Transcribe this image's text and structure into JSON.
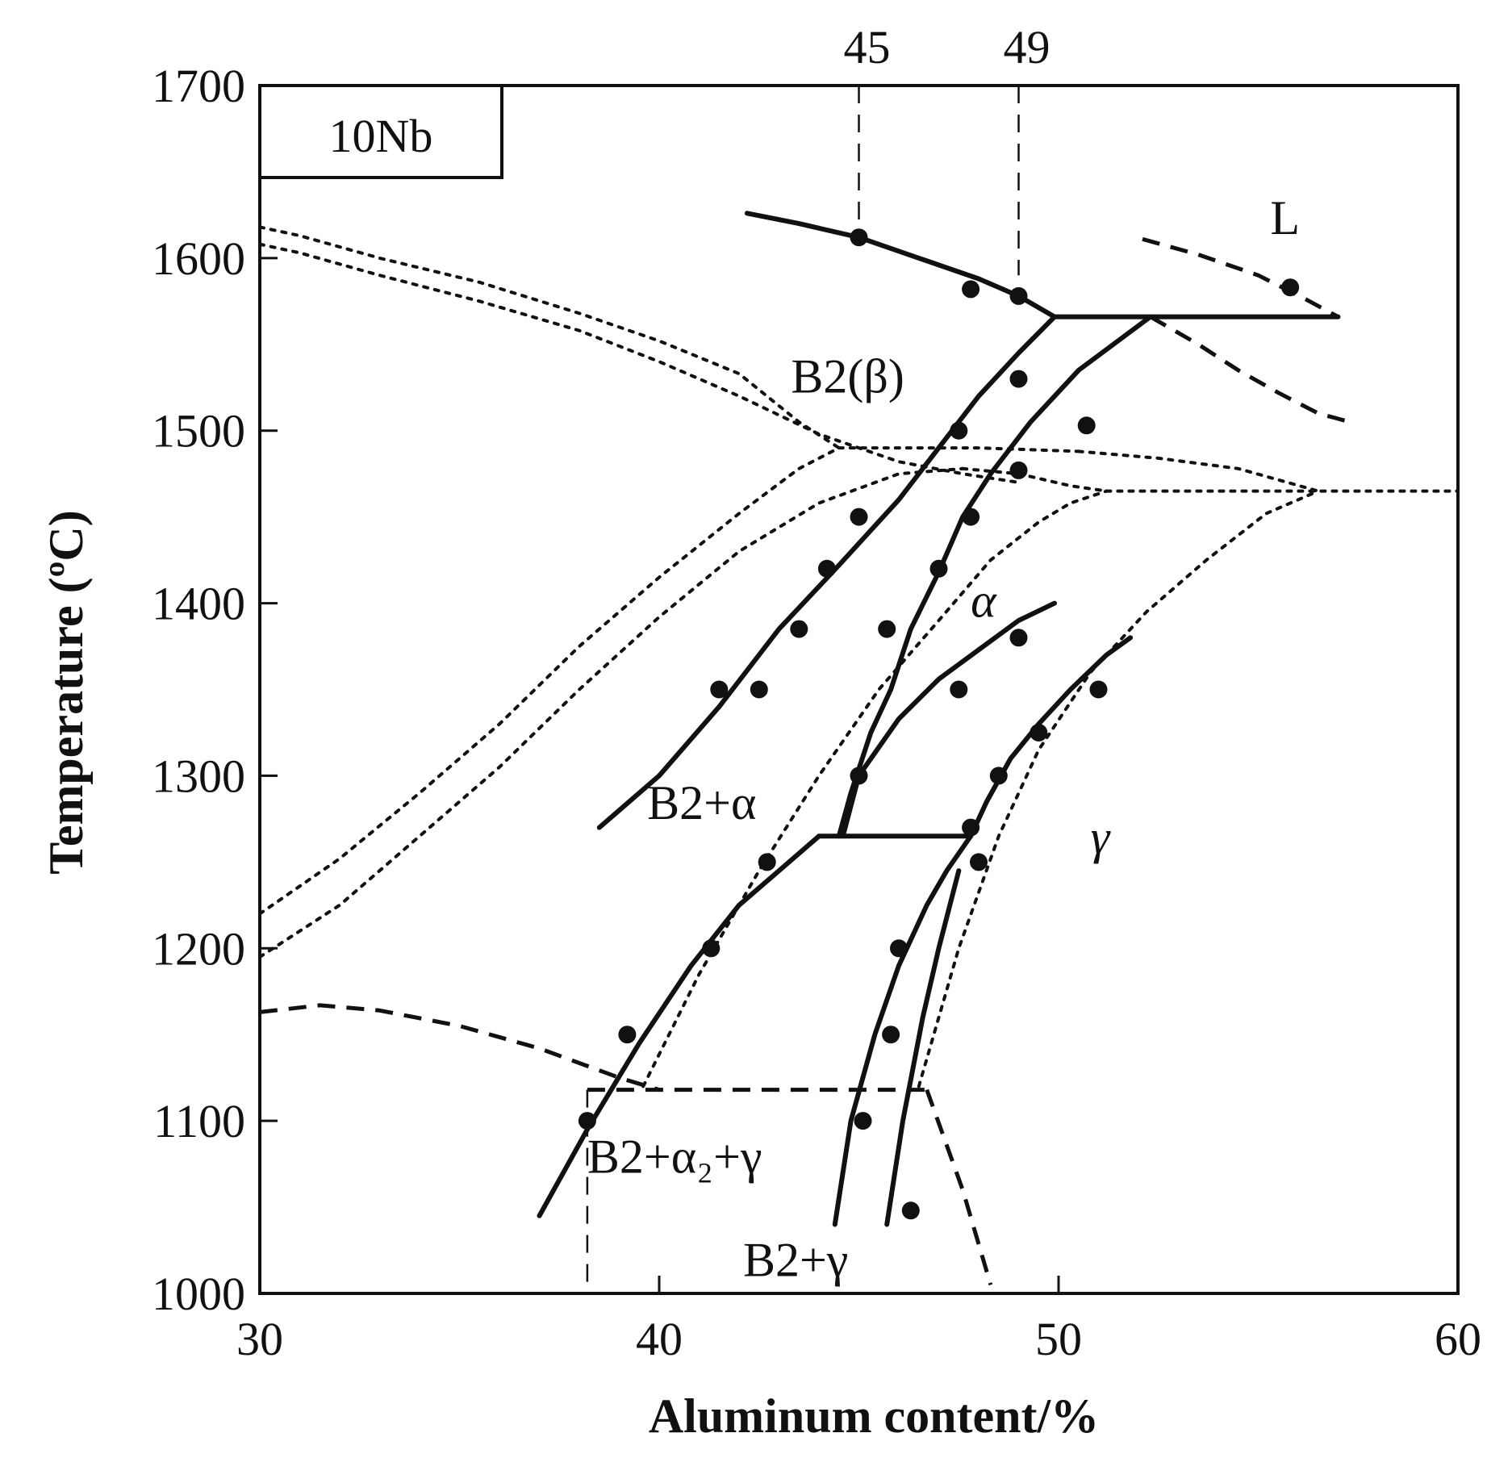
{
  "chart_data": {
    "type": "line",
    "title": "",
    "xlabel": "Aluminum content/%",
    "ylabel": "Temperature (ºC)",
    "xlim": [
      30,
      60
    ],
    "ylim": [
      1000,
      1700
    ],
    "x_ticks": [
      "30",
      "40",
      "50",
      "60"
    ],
    "y_ticks": [
      "1000",
      "1100",
      "1200",
      "1300",
      "1400",
      "1500",
      "1600",
      "1700"
    ],
    "top_ticks": [
      "45",
      "49"
    ],
    "alloy_label": "10Nb",
    "grid": false,
    "legend": "none",
    "phase_labels": [
      {
        "text": "L",
        "x": 55.3,
        "y": 1614,
        "italic": false
      },
      {
        "text": "B2(β)",
        "x": 43.3,
        "y": 1522,
        "italic": false
      },
      {
        "text": "α",
        "x": 47.8,
        "y": 1392,
        "italic": true
      },
      {
        "text": "B2+α",
        "x": 39.7,
        "y": 1275,
        "italic": false
      },
      {
        "text": "γ",
        "x": 50.8,
        "y": 1255,
        "italic": true
      },
      {
        "text": "B2+α₂+γ",
        "x": 38.2,
        "y": 1070,
        "italic": false
      },
      {
        "text": "B2+γ",
        "x": 42.1,
        "y": 1010,
        "italic": false
      }
    ],
    "series": [
      {
        "style": "solid",
        "x": [
          42.2,
          43.5,
          45.0,
          46.5,
          48.0,
          49.0,
          49.9
        ],
        "y": [
          1626,
          1620,
          1612,
          1600,
          1588,
          1578,
          1566
        ]
      },
      {
        "style": "solid",
        "x": [
          49.9,
          57.0
        ],
        "y": [
          1566,
          1566
        ]
      },
      {
        "style": "dashed",
        "x": [
          52.1,
          53.5,
          55.0,
          56.2,
          57.0
        ],
        "y": [
          1611,
          1602,
          1590,
          1576,
          1566
        ]
      },
      {
        "style": "dashed",
        "x": [
          52.3,
          53.5,
          54.5,
          55.5,
          56.5,
          57.3
        ],
        "y": [
          1566,
          1550,
          1535,
          1522,
          1510,
          1505
        ]
      },
      {
        "style": "solid",
        "x": [
          38.5,
          40.0,
          41.5,
          43.0,
          44.5,
          46.0,
          47.0,
          48.0,
          49.0,
          49.9
        ],
        "y": [
          1270,
          1300,
          1340,
          1385,
          1422,
          1460,
          1490,
          1520,
          1545,
          1566
        ]
      },
      {
        "style": "solid",
        "x": [
          44.5,
          44.8,
          45.3,
          45.8,
          46.3,
          47.0,
          47.6,
          48.3,
          49.3,
          50.5,
          52.3
        ],
        "y": [
          1265,
          1290,
          1325,
          1350,
          1385,
          1418,
          1450,
          1475,
          1505,
          1535,
          1566
        ]
      },
      {
        "style": "solid",
        "x": [
          44.6,
          45.0,
          46.0,
          47.0,
          48.0,
          49.0,
          49.9
        ],
        "y": [
          1265,
          1300,
          1333,
          1356,
          1373,
          1390,
          1400
        ]
      },
      {
        "style": "solid",
        "x": [
          44.0,
          47.8
        ],
        "y": [
          1265,
          1265
        ]
      },
      {
        "style": "solid",
        "x": [
          37.0,
          38.2,
          39.5,
          40.8,
          42.0,
          43.0,
          44.0
        ],
        "y": [
          1045,
          1095,
          1145,
          1190,
          1225,
          1245,
          1265
        ]
      },
      {
        "style": "solid",
        "x": [
          47.8,
          48.2,
          48.8,
          49.5,
          50.3,
          51.2,
          51.8
        ],
        "y": [
          1265,
          1285,
          1310,
          1330,
          1350,
          1370,
          1380
        ]
      },
      {
        "style": "solid",
        "x": [
          44.4,
          44.8,
          45.4,
          46.0,
          46.7,
          47.2,
          47.8
        ],
        "y": [
          1040,
          1100,
          1150,
          1190,
          1225,
          1245,
          1265
        ]
      },
      {
        "style": "solid",
        "x": [
          45.7,
          46.1,
          46.6,
          47.0,
          47.5
        ],
        "y": [
          1040,
          1100,
          1160,
          1200,
          1245
        ]
      },
      {
        "style": "dotted",
        "x": [
          30.0,
          31.0,
          33.0,
          35.5,
          38.0,
          40.0,
          42.0,
          43.5,
          44.5
        ],
        "y": [
          1618,
          1613,
          1600,
          1586,
          1568,
          1552,
          1533,
          1505,
          1490
        ]
      },
      {
        "style": "dotted",
        "x": [
          30.0,
          31.0,
          33.0,
          35.5,
          38.0,
          40.0,
          42.0,
          44.0,
          46.0,
          47.6,
          49.0
        ],
        "y": [
          1608,
          1603,
          1590,
          1575,
          1558,
          1540,
          1520,
          1498,
          1482,
          1475,
          1470
        ]
      },
      {
        "style": "dotted",
        "x": [
          30.0,
          32.0,
          34.0,
          36.0,
          38.0,
          40.0,
          42.0,
          43.5,
          44.5
        ],
        "y": [
          1220,
          1252,
          1290,
          1330,
          1375,
          1415,
          1452,
          1478,
          1490
        ]
      },
      {
        "style": "dotted",
        "x": [
          30.0,
          32.0,
          34.0,
          36.0,
          38.0,
          40.0,
          42.0,
          44.0,
          46.0,
          47.6
        ],
        "y": [
          1195,
          1225,
          1265,
          1305,
          1350,
          1392,
          1430,
          1458,
          1475,
          1478
        ]
      },
      {
        "style": "dotted",
        "x": [
          44.5,
          48.0,
          50.5
        ],
        "y": [
          1490,
          1490,
          1488
        ]
      },
      {
        "style": "dotted",
        "x": [
          47.6,
          49.0,
          50.3,
          51.2
        ],
        "y": [
          1478,
          1475,
          1468,
          1465
        ]
      },
      {
        "style": "dotted",
        "x": [
          50.5,
          52.5,
          54.5,
          56.5
        ],
        "y": [
          1488,
          1484,
          1478,
          1465
        ]
      },
      {
        "style": "dotted",
        "x": [
          51.2,
          60.0
        ],
        "y": [
          1465,
          1465
        ]
      },
      {
        "style": "dotted",
        "x": [
          39.6,
          41.0,
          42.5,
          44.0,
          45.5,
          47.0,
          48.3,
          49.5,
          50.3,
          51.2
        ],
        "y": [
          1120,
          1185,
          1245,
          1300,
          1350,
          1390,
          1425,
          1447,
          1458,
          1465
        ]
      },
      {
        "style": "dotted",
        "x": [
          46.5,
          47.5,
          48.5,
          49.5,
          50.8,
          52.2,
          53.7,
          55.2,
          56.5
        ],
        "y": [
          1120,
          1200,
          1265,
          1315,
          1360,
          1395,
          1425,
          1452,
          1465
        ]
      },
      {
        "style": "dashed",
        "x": [
          30.0,
          31.5,
          33.0,
          35.0,
          37.0,
          39.0,
          40.0
        ],
        "y": [
          1163,
          1167,
          1164,
          1155,
          1142,
          1125,
          1118
        ]
      },
      {
        "style": "dashed",
        "x": [
          38.2,
          46.7
        ],
        "y": [
          1118,
          1118
        ]
      },
      {
        "style": "dashed",
        "x": [
          38.2,
          38.2
        ],
        "y": [
          1118,
          1000
        ]
      },
      {
        "style": "dashed",
        "x": [
          46.7,
          47.6,
          48.3
        ],
        "y": [
          1118,
          1060,
          1005
        ]
      },
      {
        "style": "dashed",
        "x": [
          45.0,
          45.0
        ],
        "y": [
          1700,
          1610
        ]
      },
      {
        "style": "dashed",
        "x": [
          49.0,
          49.0
        ],
        "y": [
          1700,
          1590
        ]
      }
    ],
    "points": {
      "x": [
        45.0,
        47.8,
        49.0,
        49.0,
        47.5,
        49.0,
        50.7,
        55.8,
        45.0,
        47.8,
        44.2,
        43.5,
        45.7,
        42.5,
        41.5,
        47.5,
        49.0,
        45.0,
        42.7,
        51.0,
        49.5,
        48.5,
        47.8,
        41.3,
        39.2,
        38.2,
        46.0,
        45.8,
        45.1,
        47.0,
        48.0,
        46.3
      ],
      "y": [
        1612,
        1582,
        1578,
        1530,
        1500,
        1477,
        1503,
        1583,
        1450,
        1450,
        1420,
        1385,
        1385,
        1350,
        1350,
        1350,
        1380,
        1300,
        1250,
        1350,
        1325,
        1300,
        1270,
        1200,
        1150,
        1100,
        1200,
        1150,
        1100,
        1420,
        1250,
        1048
      ]
    }
  }
}
